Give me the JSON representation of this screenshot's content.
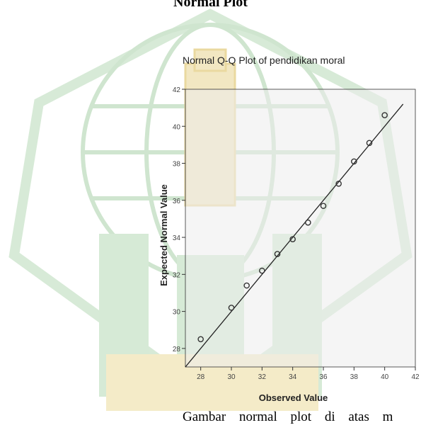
{
  "heading": "Normal Plot",
  "body_text": "Gambar normal plot di atas m",
  "colors": {
    "plot_bg": "#ececec",
    "axis": "#333333",
    "marker": "#333333",
    "line": "#222222",
    "watermark_green": "#cfe5cf",
    "watermark_gold": "#f0e4b8"
  },
  "chart_data": {
    "type": "scatter",
    "title": "Normal Q-Q Plot of pendidikan moral",
    "xlabel": "Observed Value",
    "ylabel": "Expected Normal Value",
    "xlim": [
      27,
      42
    ],
    "ylim": [
      27,
      42
    ],
    "x_ticks": [
      28,
      30,
      32,
      34,
      36,
      38,
      40,
      42
    ],
    "y_ticks": [
      28,
      30,
      32,
      34,
      36,
      38,
      40,
      42
    ],
    "grid": false,
    "reference_line": [
      [
        27,
        27
      ],
      [
        41.2,
        41.2
      ]
    ],
    "points": [
      {
        "x": 28,
        "y": 28.5
      },
      {
        "x": 30,
        "y": 30.2
      },
      {
        "x": 31,
        "y": 31.4
      },
      {
        "x": 32,
        "y": 32.2
      },
      {
        "x": 33,
        "y": 33.1
      },
      {
        "x": 34,
        "y": 33.9
      },
      {
        "x": 35,
        "y": 34.8
      },
      {
        "x": 36,
        "y": 35.7
      },
      {
        "x": 37,
        "y": 36.9
      },
      {
        "x": 38,
        "y": 38.1
      },
      {
        "x": 39,
        "y": 39.1
      },
      {
        "x": 40,
        "y": 40.6
      }
    ]
  }
}
